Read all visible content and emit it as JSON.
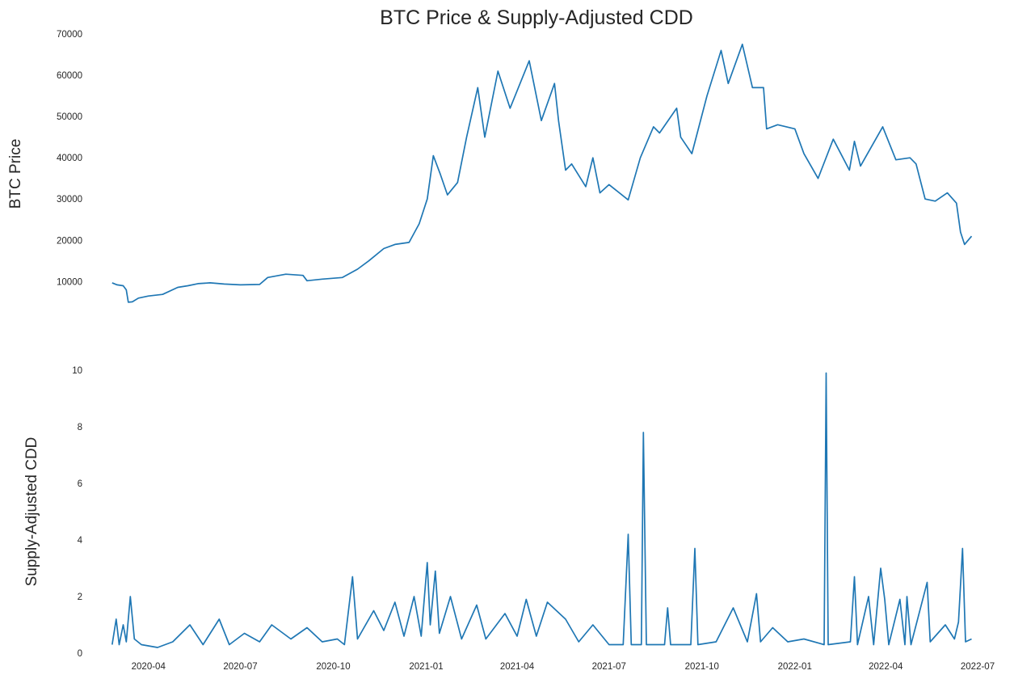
{
  "chart_data": {
    "title": "BTC Price & Supply-Adjusted CDD",
    "x_ticks": [
      "2020-04",
      "2020-07",
      "2020-10",
      "2021-01",
      "2021-04",
      "2021-07",
      "2021-10",
      "2022-01",
      "2022-04",
      "2022-07"
    ],
    "grid": false,
    "line_color": "#1f77b4",
    "panels": [
      {
        "type": "line",
        "ylabel": "BTC  Price",
        "ylim": [
          4000,
          70000
        ],
        "y_ticks": [
          "10000",
          "20000",
          "30000",
          "40000",
          "50000",
          "60000",
          "70000"
        ],
        "series": [
          {
            "points": [
              [
                "2020-02-25",
                9700
              ],
              [
                "2020-03-01",
                9200
              ],
              [
                "2020-03-07",
                9000
              ],
              [
                "2020-03-10",
                8000
              ],
              [
                "2020-03-12",
                5000
              ],
              [
                "2020-03-16",
                5100
              ],
              [
                "2020-03-22",
                6000
              ],
              [
                "2020-04-01",
                6500
              ],
              [
                "2020-04-15",
                6900
              ],
              [
                "2020-04-30",
                8600
              ],
              [
                "2020-05-10",
                9000
              ],
              [
                "2020-05-20",
                9500
              ],
              [
                "2020-06-01",
                9700
              ],
              [
                "2020-06-15",
                9400
              ],
              [
                "2020-07-01",
                9200
              ],
              [
                "2020-07-20",
                9300
              ],
              [
                "2020-07-28",
                11000
              ],
              [
                "2020-08-15",
                11800
              ],
              [
                "2020-09-01",
                11500
              ],
              [
                "2020-09-05",
                10200
              ],
              [
                "2020-09-20",
                10600
              ],
              [
                "2020-10-10",
                11000
              ],
              [
                "2020-10-25",
                13000
              ],
              [
                "2020-11-05",
                15000
              ],
              [
                "2020-11-20",
                18000
              ],
              [
                "2020-12-01",
                19000
              ],
              [
                "2020-12-15",
                19500
              ],
              [
                "2020-12-25",
                24000
              ],
              [
                "2021-01-02",
                30000
              ],
              [
                "2021-01-08",
                40500
              ],
              [
                "2021-01-15",
                36000
              ],
              [
                "2021-01-22",
                31000
              ],
              [
                "2021-02-01",
                34000
              ],
              [
                "2021-02-10",
                45000
              ],
              [
                "2021-02-21",
                57000
              ],
              [
                "2021-02-28",
                45000
              ],
              [
                "2021-03-13",
                61000
              ],
              [
                "2021-03-25",
                52000
              ],
              [
                "2021-04-13",
                63500
              ],
              [
                "2021-04-25",
                49000
              ],
              [
                "2021-05-08",
                58000
              ],
              [
                "2021-05-12",
                49000
              ],
              [
                "2021-05-19",
                37000
              ],
              [
                "2021-05-25",
                38500
              ],
              [
                "2021-06-08",
                33000
              ],
              [
                "2021-06-15",
                40000
              ],
              [
                "2021-06-22",
                31500
              ],
              [
                "2021-07-01",
                33500
              ],
              [
                "2021-07-20",
                29800
              ],
              [
                "2021-08-01",
                40000
              ],
              [
                "2021-08-14",
                47500
              ],
              [
                "2021-08-20",
                46000
              ],
              [
                "2021-09-06",
                52000
              ],
              [
                "2021-09-10",
                45000
              ],
              [
                "2021-09-21",
                41000
              ],
              [
                "2021-10-06",
                55000
              ],
              [
                "2021-10-20",
                66000
              ],
              [
                "2021-10-27",
                58000
              ],
              [
                "2021-11-10",
                67500
              ],
              [
                "2021-11-20",
                57000
              ],
              [
                "2021-12-01",
                57000
              ],
              [
                "2021-12-04",
                47000
              ],
              [
                "2021-12-15",
                48000
              ],
              [
                "2022-01-01",
                47000
              ],
              [
                "2022-01-10",
                41000
              ],
              [
                "2022-01-24",
                35000
              ],
              [
                "2022-02-08",
                44500
              ],
              [
                "2022-02-24",
                37000
              ],
              [
                "2022-03-01",
                44000
              ],
              [
                "2022-03-07",
                38000
              ],
              [
                "2022-03-29",
                47500
              ],
              [
                "2022-04-11",
                39500
              ],
              [
                "2022-04-25",
                40000
              ],
              [
                "2022-05-01",
                38500
              ],
              [
                "2022-05-10",
                30000
              ],
              [
                "2022-05-20",
                29500
              ],
              [
                "2022-06-01",
                31500
              ],
              [
                "2022-06-10",
                29000
              ],
              [
                "2022-06-14",
                22000
              ],
              [
                "2022-06-18",
                19000
              ],
              [
                "2022-06-25",
                21000
              ]
            ]
          }
        ]
      },
      {
        "type": "line",
        "ylabel": "Supply-Adjusted CDD",
        "ylim": [
          0,
          10
        ],
        "y_ticks": [
          "0",
          "2",
          "4",
          "6",
          "8",
          "10"
        ],
        "series": [
          {
            "points": [
              [
                "2020-02-25",
                0.3
              ],
              [
                "2020-02-29",
                1.2
              ],
              [
                "2020-03-03",
                0.3
              ],
              [
                "2020-03-07",
                1.0
              ],
              [
                "2020-03-10",
                0.4
              ],
              [
                "2020-03-14",
                2.0
              ],
              [
                "2020-03-18",
                0.5
              ],
              [
                "2020-03-25",
                0.3
              ],
              [
                "2020-04-10",
                0.2
              ],
              [
                "2020-04-25",
                0.4
              ],
              [
                "2020-05-12",
                1.0
              ],
              [
                "2020-05-25",
                0.3
              ],
              [
                "2020-06-10",
                1.2
              ],
              [
                "2020-06-20",
                0.3
              ],
              [
                "2020-07-05",
                0.7
              ],
              [
                "2020-07-20",
                0.4
              ],
              [
                "2020-08-01",
                1.0
              ],
              [
                "2020-08-20",
                0.5
              ],
              [
                "2020-09-05",
                0.9
              ],
              [
                "2020-09-20",
                0.4
              ],
              [
                "2020-10-05",
                0.5
              ],
              [
                "2020-10-12",
                0.3
              ],
              [
                "2020-10-20",
                2.7
              ],
              [
                "2020-10-25",
                0.5
              ],
              [
                "2020-11-10",
                1.5
              ],
              [
                "2020-11-20",
                0.8
              ],
              [
                "2020-12-01",
                1.8
              ],
              [
                "2020-12-10",
                0.6
              ],
              [
                "2020-12-20",
                2.0
              ],
              [
                "2020-12-27",
                0.6
              ],
              [
                "2021-01-02",
                3.2
              ],
              [
                "2021-01-05",
                1.0
              ],
              [
                "2021-01-10",
                2.9
              ],
              [
                "2021-01-14",
                0.7
              ],
              [
                "2021-01-25",
                2.0
              ],
              [
                "2021-02-05",
                0.5
              ],
              [
                "2021-02-20",
                1.7
              ],
              [
                "2021-03-01",
                0.5
              ],
              [
                "2021-03-20",
                1.4
              ],
              [
                "2021-04-01",
                0.6
              ],
              [
                "2021-04-10",
                1.9
              ],
              [
                "2021-04-20",
                0.6
              ],
              [
                "2021-05-01",
                1.8
              ],
              [
                "2021-05-19",
                1.2
              ],
              [
                "2021-06-01",
                0.4
              ],
              [
                "2021-06-15",
                1.0
              ],
              [
                "2021-07-01",
                0.3
              ],
              [
                "2021-07-15",
                0.3
              ],
              [
                "2021-07-20",
                4.2
              ],
              [
                "2021-07-23",
                0.3
              ],
              [
                "2021-08-02",
                0.3
              ],
              [
                "2021-08-04",
                7.8
              ],
              [
                "2021-08-07",
                0.3
              ],
              [
                "2021-08-25",
                0.3
              ],
              [
                "2021-08-28",
                1.6
              ],
              [
                "2021-08-31",
                0.3
              ],
              [
                "2021-09-20",
                0.3
              ],
              [
                "2021-09-24",
                3.7
              ],
              [
                "2021-09-27",
                0.3
              ],
              [
                "2021-10-15",
                0.4
              ],
              [
                "2021-11-01",
                1.6
              ],
              [
                "2021-11-15",
                0.4
              ],
              [
                "2021-11-24",
                2.1
              ],
              [
                "2021-11-28",
                0.4
              ],
              [
                "2021-12-10",
                0.9
              ],
              [
                "2021-12-25",
                0.4
              ],
              [
                "2022-01-10",
                0.5
              ],
              [
                "2022-01-30",
                0.3
              ],
              [
                "2022-02-01",
                9.9
              ],
              [
                "2022-02-03",
                0.3
              ],
              [
                "2022-02-25",
                0.4
              ],
              [
                "2022-03-01",
                2.7
              ],
              [
                "2022-03-04",
                0.3
              ],
              [
                "2022-03-15",
                2.0
              ],
              [
                "2022-03-20",
                0.3
              ],
              [
                "2022-03-27",
                3.0
              ],
              [
                "2022-03-31",
                1.9
              ],
              [
                "2022-04-04",
                0.3
              ],
              [
                "2022-04-15",
                1.9
              ],
              [
                "2022-04-20",
                0.3
              ],
              [
                "2022-04-22",
                2.0
              ],
              [
                "2022-04-26",
                0.3
              ],
              [
                "2022-05-12",
                2.5
              ],
              [
                "2022-05-15",
                0.4
              ],
              [
                "2022-05-30",
                1.0
              ],
              [
                "2022-06-08",
                0.5
              ],
              [
                "2022-06-12",
                1.1
              ],
              [
                "2022-06-16",
                3.7
              ],
              [
                "2022-06-19",
                0.4
              ],
              [
                "2022-06-25",
                0.5
              ]
            ]
          }
        ]
      }
    ]
  }
}
